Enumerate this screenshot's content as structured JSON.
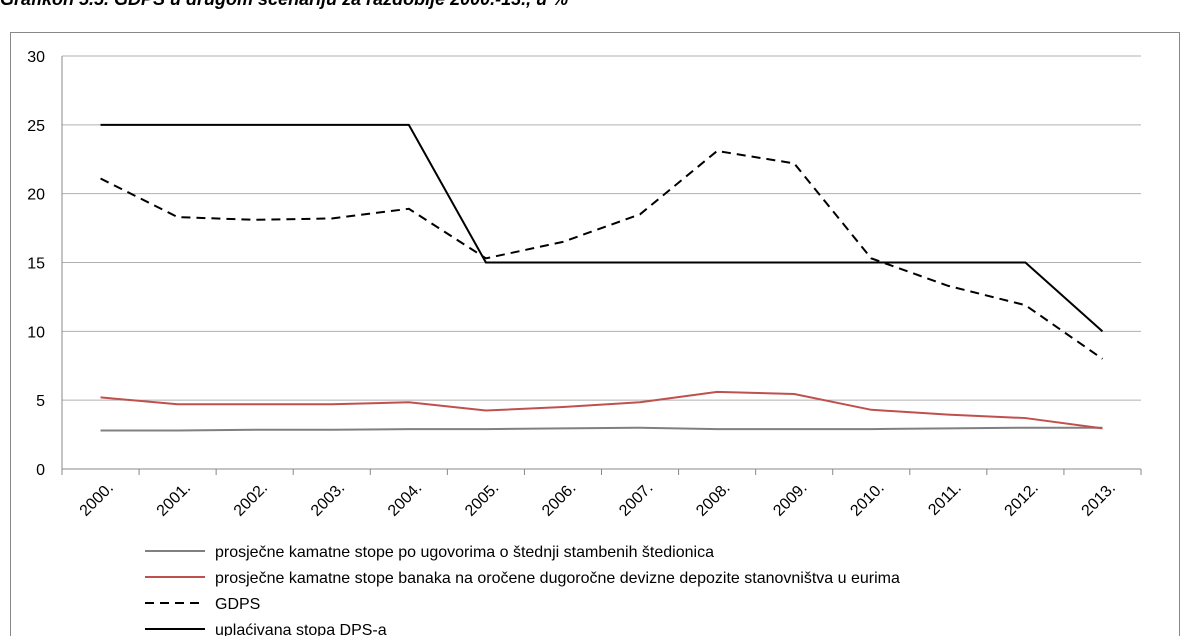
{
  "chart_data": {
    "type": "line",
    "title": "Grafikon 5.5. GDPS u drugom scenariju za razdoblje 2000.-13., u %",
    "categories": [
      "2000.",
      "2001.",
      "2002.",
      "2003.",
      "2004.",
      "2005.",
      "2006.",
      "2007.",
      "2008.",
      "2009.",
      "2010.",
      "2011.",
      "2012.",
      "2013."
    ],
    "series": [
      {
        "name": "prosječne kamatne stope po ugovorima o štednji stambenih štedionica",
        "color": "#808080",
        "dash": "solid",
        "values": [
          2.8,
          2.8,
          2.85,
          2.85,
          2.9,
          2.9,
          2.95,
          3.0,
          2.9,
          2.9,
          2.9,
          2.95,
          3.0,
          3.0
        ]
      },
      {
        "name": "prosječne kamatne stope banaka na oročene dugoročne devizne depozite stanovništva u eurima",
        "color": "#c0504d",
        "dash": "solid",
        "values": [
          5.2,
          4.7,
          4.7,
          4.7,
          4.85,
          4.25,
          4.5,
          4.85,
          5.6,
          5.45,
          4.3,
          3.95,
          3.7,
          2.95
        ]
      },
      {
        "name": "GDPS",
        "color": "#000000",
        "dash": "dashed",
        "values": [
          21.1,
          18.3,
          18.1,
          18.2,
          18.9,
          15.3,
          16.5,
          18.5,
          23.1,
          22.2,
          15.3,
          13.3,
          11.9,
          8.0
        ]
      },
      {
        "name": "uplaćivana stopa DPS-a",
        "color": "#000000",
        "dash": "solid",
        "values": [
          25,
          25,
          25,
          25,
          25,
          15,
          15,
          15,
          15,
          15,
          15,
          15,
          15,
          10
        ]
      }
    ],
    "ylim": [
      0,
      30
    ],
    "yticks": [
      0,
      5,
      10,
      15,
      20,
      25,
      30
    ],
    "grid": true,
    "legend": "bottom"
  }
}
